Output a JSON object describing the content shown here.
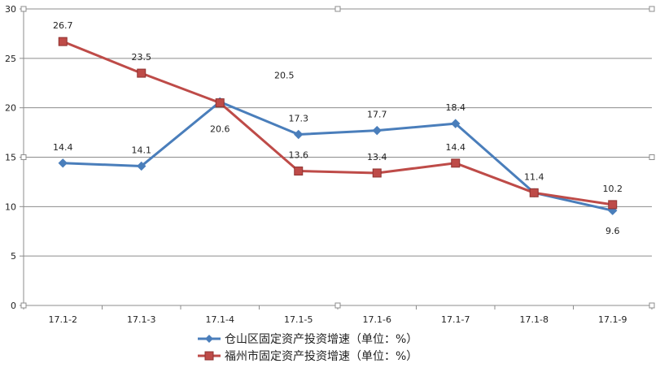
{
  "chart_data": {
    "type": "line",
    "categories": [
      "17.1-2",
      "17.1-3",
      "17.1-4",
      "17.1-5",
      "17.1-6",
      "17.1-7",
      "17.1-8",
      "17.1-9"
    ],
    "ylim": [
      0,
      30
    ],
    "yticks": [
      0,
      5,
      10,
      15,
      20,
      25,
      30
    ],
    "grid": true,
    "legend_position": "bottom",
    "series": [
      {
        "name": "仓山区固定资产投资增速（单位：%）",
        "color": "#4a7ebb",
        "marker": "diamond",
        "values": [
          14.4,
          14.1,
          20.6,
          17.3,
          17.7,
          18.4,
          11.4,
          9.6
        ],
        "labels": [
          "14.4",
          "14.1",
          "20.6",
          "17.3",
          "17.7",
          "18.4",
          "11.4",
          "9.6"
        ]
      },
      {
        "name": "福州市固定资产投资增速（单位：%）",
        "color": "#be4b48",
        "marker": "square",
        "values": [
          26.7,
          23.5,
          20.5,
          13.6,
          13.4,
          14.4,
          11.4,
          10.2
        ],
        "labels": [
          "26.7",
          "23.5",
          "20.5",
          "13.6",
          "13.4",
          "14.4",
          "",
          "10.2"
        ]
      }
    ]
  }
}
